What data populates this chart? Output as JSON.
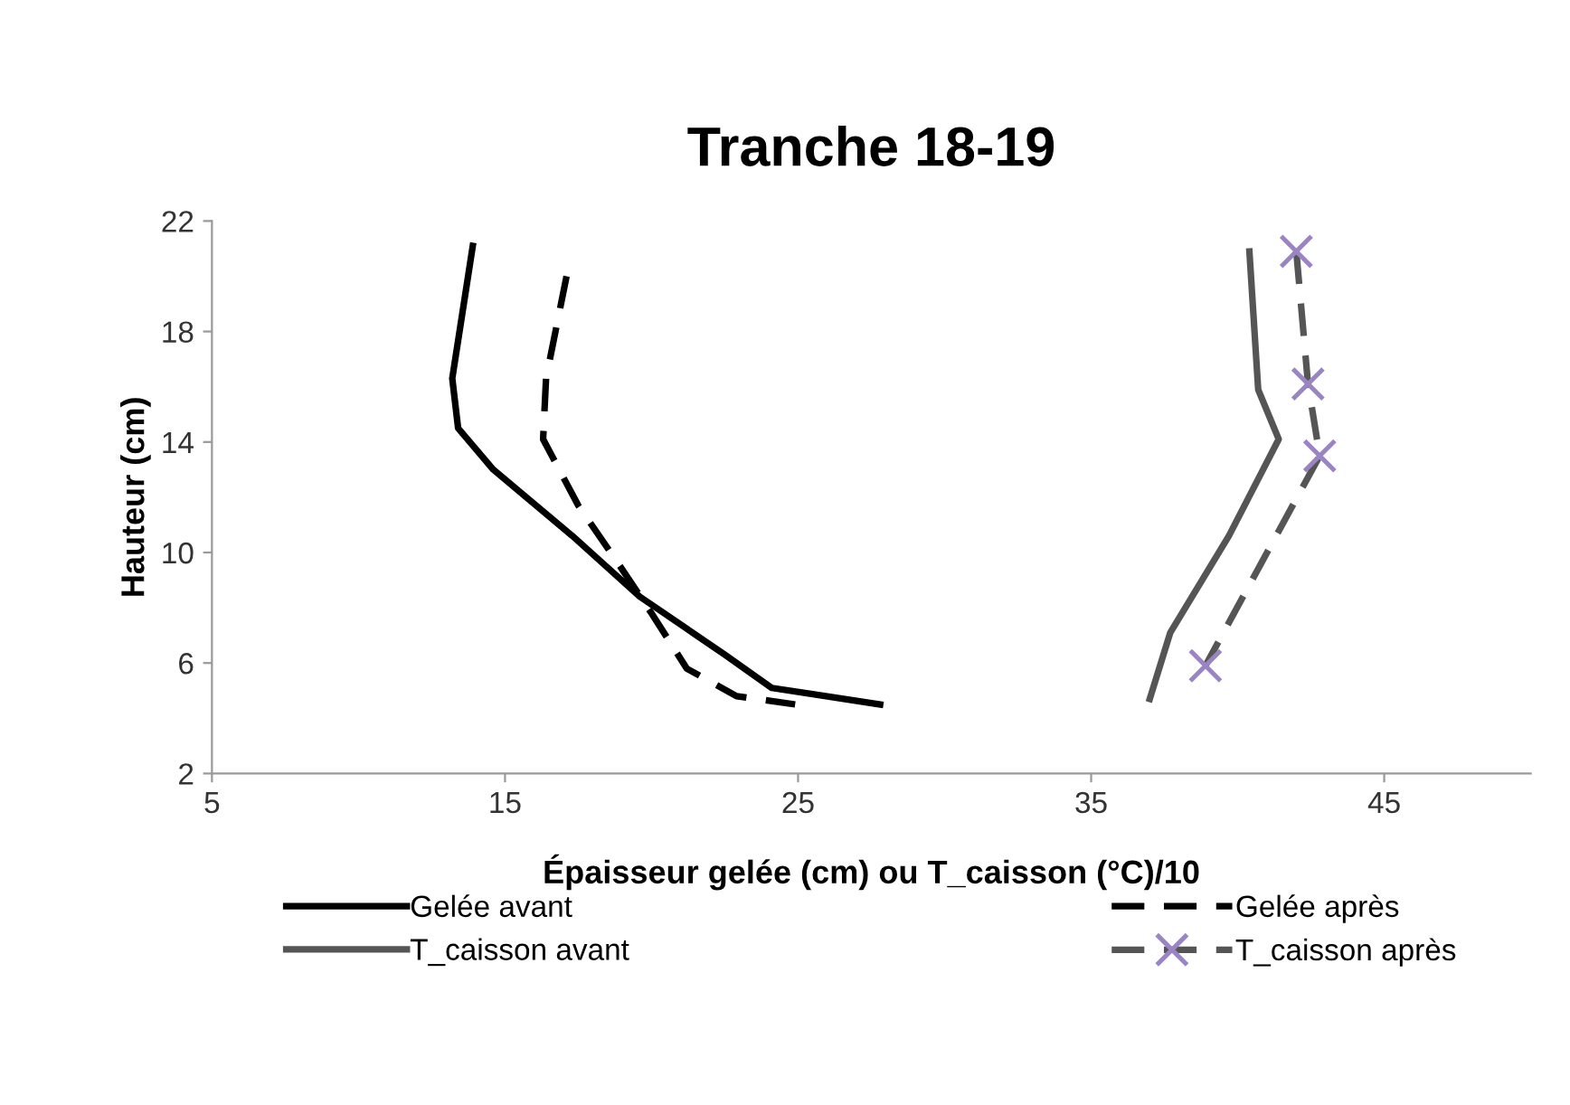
{
  "chart_data": {
    "type": "line",
    "title": "Tranche 18-19",
    "xlabel": "Épaisseur gelée (cm) ou T_caisson (°C)/10",
    "ylabel": "Hauteur (cm)",
    "xlim": [
      5,
      50
    ],
    "xticks": [
      5,
      15,
      25,
      35,
      45
    ],
    "ylim": [
      2,
      22
    ],
    "yticks": [
      2,
      6,
      10,
      14,
      18,
      22
    ],
    "grid": false,
    "legend": "bottom",
    "series": [
      {
        "name": "Gelée avant",
        "color": "#000000",
        "line_style": "solid",
        "marker": "none",
        "x": [
          13.9,
          13.2,
          13.4,
          14.6,
          17.3,
          19.6,
          22.5,
          24.1,
          27.8
        ],
        "values": [
          21.1,
          16.3,
          14.5,
          13.0,
          10.6,
          8.4,
          6.3,
          5.1,
          4.5
        ]
      },
      {
        "name": "T_caisson avant",
        "color": "#555555",
        "line_style": "solid",
        "marker": "none",
        "x": [
          40.4,
          40.7,
          41.4,
          39.7,
          37.7,
          37.0
        ],
        "values": [
          20.9,
          15.9,
          14.1,
          10.6,
          7.1,
          4.7
        ]
      },
      {
        "name": "Gelée après",
        "color": "#000000",
        "line_style": "dashed",
        "marker": "none",
        "x": [
          17.1,
          16.4,
          16.3,
          17.5,
          18.8,
          20.0,
          21.2,
          22.9,
          24.9
        ],
        "values": [
          20.0,
          16.3,
          14.1,
          11.7,
          9.7,
          7.8,
          5.8,
          4.8,
          4.5
        ]
      },
      {
        "name": "T_caisson après",
        "color": "#555555",
        "line_style": "dashed",
        "marker": "cross",
        "x": [
          42.0,
          42.4,
          42.8,
          38.9
        ],
        "values": [
          20.9,
          16.1,
          13.5,
          5.9
        ]
      }
    ]
  }
}
